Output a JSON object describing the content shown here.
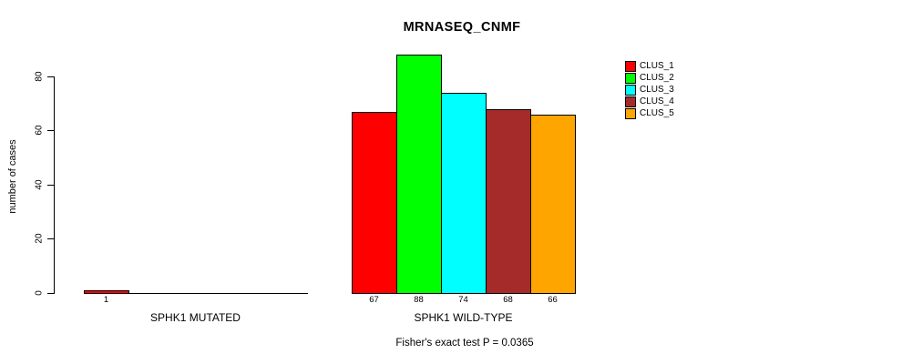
{
  "figure": {
    "title": "MRNASEQ_CNMF",
    "annotation": "Fisher's exact test P = 0.0365"
  },
  "chart_data": {
    "type": "bar",
    "title": "MRNASEQ_CNMF",
    "xlabel": "",
    "ylabel": "number of cases",
    "ylim": [
      0,
      88
    ],
    "yticks": [
      0,
      20,
      40,
      60,
      80
    ],
    "grid": false,
    "categories": [
      "SPHK1 MUTATED",
      "SPHK1 WILD-TYPE"
    ],
    "series": [
      {
        "name": "CLUS_1",
        "color": "#FF0000",
        "values": [
          1,
          67
        ]
      },
      {
        "name": "CLUS_2",
        "color": "#00FF00",
        "values": [
          0,
          88
        ]
      },
      {
        "name": "CLUS_3",
        "color": "#00FFFF",
        "values": [
          0,
          74
        ]
      },
      {
        "name": "CLUS_4",
        "color": "#A52A2A",
        "values": [
          0,
          68
        ]
      },
      {
        "name": "CLUS_5",
        "color": "#FFA500",
        "values": [
          0,
          66
        ]
      }
    ],
    "bar_value_labels_shown": true,
    "zero_value_labels_hidden": true,
    "legend_position": "right",
    "legend_entries": [
      "CLUS_1",
      "CLUS_2",
      "CLUS_3",
      "CLUS_4",
      "CLUS_5"
    ],
    "annotation": "Fisher's exact test P = 0.0365"
  }
}
